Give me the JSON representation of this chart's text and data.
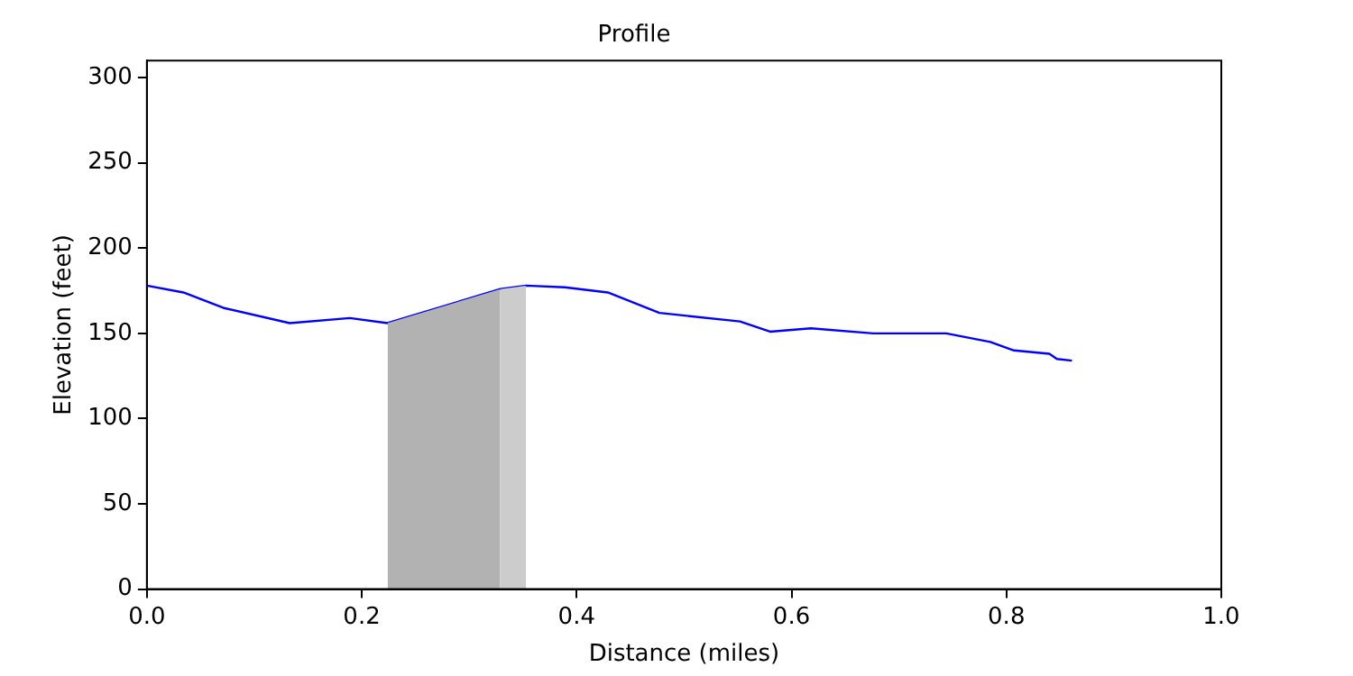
{
  "chart_data": {
    "type": "line",
    "title": "Profile",
    "xlabel": "Distance (miles)",
    "ylabel": "Elevation (feet)",
    "xlim": [
      0,
      1
    ],
    "xticks": [
      {
        "value": 0,
        "label": "0.0"
      },
      {
        "value": 0.2,
        "label": "0.2"
      },
      {
        "value": 0.4,
        "label": "0.4"
      },
      {
        "value": 0.6,
        "label": "0.6"
      },
      {
        "value": 0.8,
        "label": "0.8"
      },
      {
        "value": 1,
        "label": "1.0"
      }
    ],
    "ylim": [
      0,
      310
    ],
    "yticks": [
      0,
      50,
      100,
      150,
      200,
      250,
      300
    ],
    "grid": false,
    "legend": false,
    "marker": "none",
    "line_style": "solid",
    "series": [
      {
        "type": "area",
        "color": "#b2b2b2",
        "x": [
          0.224,
          0.329
        ],
        "values": [
          156,
          176
        ]
      },
      {
        "type": "area",
        "color": "#cccccc",
        "x": [
          0.329,
          0.353
        ],
        "values": [
          176,
          178
        ]
      },
      {
        "type": "line",
        "color": "#0000ff",
        "x": [
          0,
          0.034,
          0.071,
          0.133,
          0.189,
          0.224,
          0.329,
          0.353,
          0.389,
          0.429,
          0.477,
          0.552,
          0.58,
          0.618,
          0.676,
          0.744,
          0.785,
          0.807,
          0.84,
          0.847,
          0.861
        ],
        "values": [
          178,
          174,
          165,
          156,
          159,
          156,
          176,
          178,
          177,
          174,
          162,
          157,
          151,
          153,
          150,
          150,
          145,
          140,
          138,
          135,
          134
        ]
      }
    ]
  }
}
